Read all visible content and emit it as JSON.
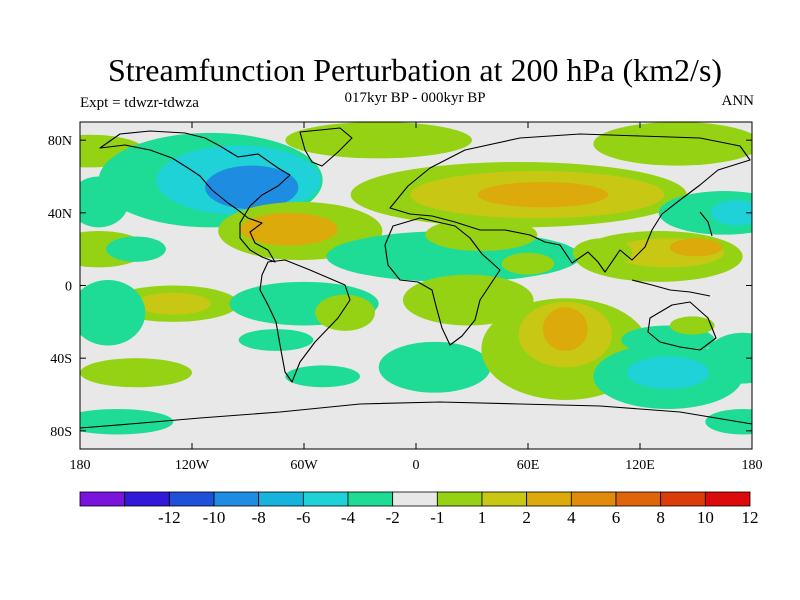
{
  "chart_data": {
    "type": "heatmap",
    "title": "Streamfunction Perturbation at 200 hPa (km2/s)",
    "subtitle": "017kyr BP - 000kyr BP",
    "left_label": "Expt = tdwzr-tdwza",
    "right_label": "ANN",
    "xlabel": "",
    "ylabel": "",
    "xlim": [
      -180,
      180
    ],
    "ylim": [
      -90,
      90
    ],
    "x_ticks": [
      {
        "value": -180,
        "label": "180"
      },
      {
        "value": -120,
        "label": "120W"
      },
      {
        "value": -60,
        "label": "60W"
      },
      {
        "value": 0,
        "label": "0"
      },
      {
        "value": 60,
        "label": "60E"
      },
      {
        "value": 120,
        "label": "120E"
      },
      {
        "value": 180,
        "label": "180"
      }
    ],
    "y_ticks": [
      {
        "value": 80,
        "label": "80N"
      },
      {
        "value": 40,
        "label": "40N"
      },
      {
        "value": 0,
        "label": "0"
      },
      {
        "value": -40,
        "label": "40S"
      },
      {
        "value": -80,
        "label": "80S"
      }
    ],
    "colorbar": {
      "colors": [
        "#7a14dc",
        "#3218d8",
        "#1e50d8",
        "#1e8ce0",
        "#16b4dc",
        "#1ed2d8",
        "#1edc96",
        "#e8e8e8",
        "#96d214",
        "#c8c814",
        "#dcaa0a",
        "#e08c0a",
        "#e0640a",
        "#dc3c0a",
        "#dc0a0a"
      ],
      "labels": [
        {
          "text": "-12",
          "index": 2
        },
        {
          "text": "-10",
          "index": 3
        },
        {
          "text": "-8",
          "index": 4
        },
        {
          "text": "-6",
          "index": 5
        },
        {
          "text": "-4",
          "index": 6
        },
        {
          "text": "-2",
          "index": 7
        },
        {
          "text": "-1",
          "index": 8
        },
        {
          "text": "1",
          "index": 9
        },
        {
          "text": "2",
          "index": 10
        },
        {
          "text": "4",
          "index": 11
        },
        {
          "text": "6",
          "index": 12
        },
        {
          "text": "8",
          "index": 13
        },
        {
          "text": "10",
          "index": 14
        },
        {
          "text": "12",
          "index": 15
        }
      ]
    },
    "field_regions": [
      {
        "lon": -175,
        "lat": 74,
        "rx": 30,
        "ry": 9,
        "level": 8
      },
      {
        "lon": -110,
        "lat": 58,
        "rx": 60,
        "ry": 26,
        "level": 6
      },
      {
        "lon": -95,
        "lat": 58,
        "rx": 44,
        "ry": 19,
        "level": 5
      },
      {
        "lon": -88,
        "lat": 54,
        "rx": 25,
        "ry": 12,
        "level": 3
      },
      {
        "lon": -62,
        "lat": 30,
        "rx": 44,
        "ry": 16,
        "level": 8
      },
      {
        "lon": -68,
        "lat": 31,
        "rx": 26,
        "ry": 9,
        "level": 10
      },
      {
        "lon": -170,
        "lat": 46,
        "rx": 16,
        "ry": 14,
        "level": 6
      },
      {
        "lon": -170,
        "lat": 20,
        "rx": 26,
        "ry": 10,
        "level": 8
      },
      {
        "lon": -150,
        "lat": 20,
        "rx": 16,
        "ry": 7,
        "level": 6
      },
      {
        "lon": -20,
        "lat": 80,
        "rx": 50,
        "ry": 10,
        "level": 8
      },
      {
        "lon": 55,
        "lat": 50,
        "rx": 90,
        "ry": 18,
        "level": 8
      },
      {
        "lon": 65,
        "lat": 50,
        "rx": 68,
        "ry": 13,
        "level": 9
      },
      {
        "lon": 68,
        "lat": 50,
        "rx": 35,
        "ry": 7,
        "level": 10
      },
      {
        "lon": 140,
        "lat": 78,
        "rx": 45,
        "ry": 12,
        "level": 8
      },
      {
        "lon": 165,
        "lat": 40,
        "rx": 35,
        "ry": 12,
        "level": 6
      },
      {
        "lon": 172,
        "lat": 40,
        "rx": 14,
        "ry": 7,
        "level": 5
      },
      {
        "lon": 130,
        "lat": 16,
        "rx": 45,
        "ry": 14,
        "level": 8
      },
      {
        "lon": 135,
        "lat": 18,
        "rx": 30,
        "ry": 8,
        "level": 9
      },
      {
        "lon": 150,
        "lat": 21,
        "rx": 14,
        "ry": 5,
        "level": 10
      },
      {
        "lon": 20,
        "lat": 16,
        "rx": 68,
        "ry": 14,
        "level": 6
      },
      {
        "lon": 35,
        "lat": 28,
        "rx": 30,
        "ry": 9,
        "level": 8
      },
      {
        "lon": 60,
        "lat": 12,
        "rx": 14,
        "ry": 6,
        "level": 8
      },
      {
        "lon": 100,
        "lat": 18,
        "rx": 16,
        "ry": 8,
        "level": 8
      },
      {
        "lon": -130,
        "lat": -10,
        "rx": 35,
        "ry": 10,
        "level": 8
      },
      {
        "lon": -130,
        "lat": -10,
        "rx": 20,
        "ry": 6,
        "level": 9
      },
      {
        "lon": -165,
        "lat": -15,
        "rx": 20,
        "ry": 18,
        "level": 6
      },
      {
        "lon": -60,
        "lat": -10,
        "rx": 40,
        "ry": 12,
        "level": 6
      },
      {
        "lon": -38,
        "lat": -15,
        "rx": 16,
        "ry": 10,
        "level": 8
      },
      {
        "lon": -75,
        "lat": -30,
        "rx": 20,
        "ry": 6,
        "level": 6
      },
      {
        "lon": -150,
        "lat": -48,
        "rx": 30,
        "ry": 8,
        "level": 8
      },
      {
        "lon": -50,
        "lat": -50,
        "rx": 20,
        "ry": 6,
        "level": 6
      },
      {
        "lon": 10,
        "lat": -45,
        "rx": 30,
        "ry": 14,
        "level": 6
      },
      {
        "lon": 28,
        "lat": -8,
        "rx": 35,
        "ry": 14,
        "level": 8
      },
      {
        "lon": 80,
        "lat": -35,
        "rx": 45,
        "ry": 28,
        "level": 8
      },
      {
        "lon": 80,
        "lat": -27,
        "rx": 25,
        "ry": 18,
        "level": 9
      },
      {
        "lon": 80,
        "lat": -24,
        "rx": 12,
        "ry": 12,
        "level": 10
      },
      {
        "lon": 135,
        "lat": -50,
        "rx": 40,
        "ry": 18,
        "level": 6
      },
      {
        "lon": 135,
        "lat": -48,
        "rx": 22,
        "ry": 9,
        "level": 5
      },
      {
        "lon": 135,
        "lat": -30,
        "rx": 25,
        "ry": 8,
        "level": 6
      },
      {
        "lon": 148,
        "lat": -22,
        "rx": 12,
        "ry": 5,
        "level": 8
      },
      {
        "lon": 175,
        "lat": -40,
        "rx": 20,
        "ry": 14,
        "level": 6
      },
      {
        "lon": -160,
        "lat": -75,
        "rx": 30,
        "ry": 7,
        "level": 6
      },
      {
        "lon": 175,
        "lat": -75,
        "rx": 20,
        "ry": 7,
        "level": 6
      }
    ]
  }
}
